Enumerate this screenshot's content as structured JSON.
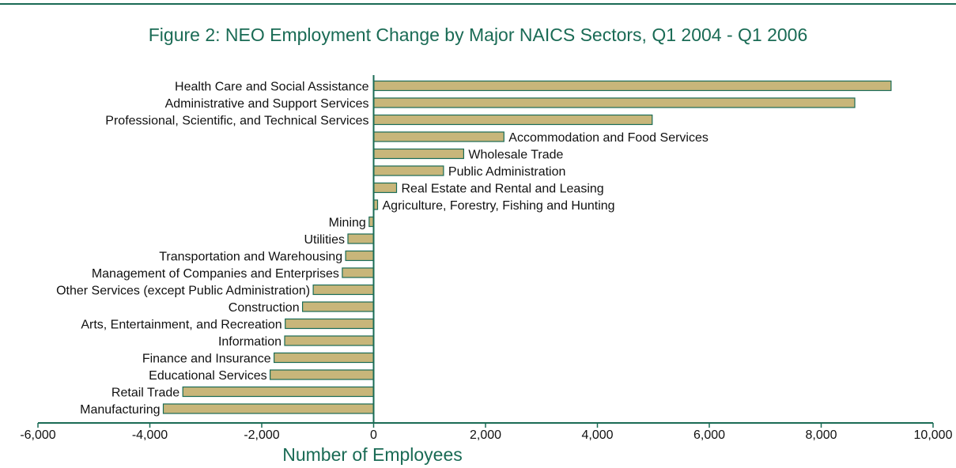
{
  "chart_data": {
    "type": "bar",
    "orientation": "horizontal",
    "title": "Figure 2:  NEO Employment Change by Major NAICS Sectors, Q1 2004 - Q1 2006",
    "xlabel": "Number of Employees",
    "ylabel": "",
    "xlim": [
      -6000,
      10000
    ],
    "xticks": [
      -6000,
      -4000,
      -2000,
      0,
      2000,
      4000,
      6000,
      8000,
      10000
    ],
    "xtick_labels": [
      "-6,000",
      "-4,000",
      "-2,000",
      "0",
      "2,000",
      "4,000",
      "6,000",
      "8,000",
      "10,000"
    ],
    "grid": false,
    "legend": "none",
    "categories": [
      "Health Care and Social Assistance",
      "Administrative and Support Services",
      "Professional, Scientific, and Technical Services",
      "Accommodation and Food Services",
      "Wholesale Trade",
      "Public Administration",
      "Real Estate and Rental and Leasing",
      "Agriculture, Forestry, Fishing and Hunting",
      "Mining",
      "Utilities",
      "Transportation and Warehousing",
      "Management of Companies and Enterprises",
      "Other Services (except Public Administration)",
      "Construction",
      "Arts, Entertainment, and Recreation",
      "Information",
      "Finance and Insurance",
      "Educational Services",
      "Retail Trade",
      "Manufacturing"
    ],
    "values": [
      9250,
      8600,
      4980,
      2330,
      1610,
      1250,
      410,
      70,
      -80,
      -460,
      -500,
      -560,
      -1080,
      -1270,
      -1580,
      -1590,
      -1780,
      -1850,
      -3410,
      -3760
    ],
    "colors": {
      "bar_fill": "#c8b67a",
      "bar_stroke": "#1a6b55",
      "axis": "#1a6b55",
      "title": "#1a6b55"
    }
  }
}
